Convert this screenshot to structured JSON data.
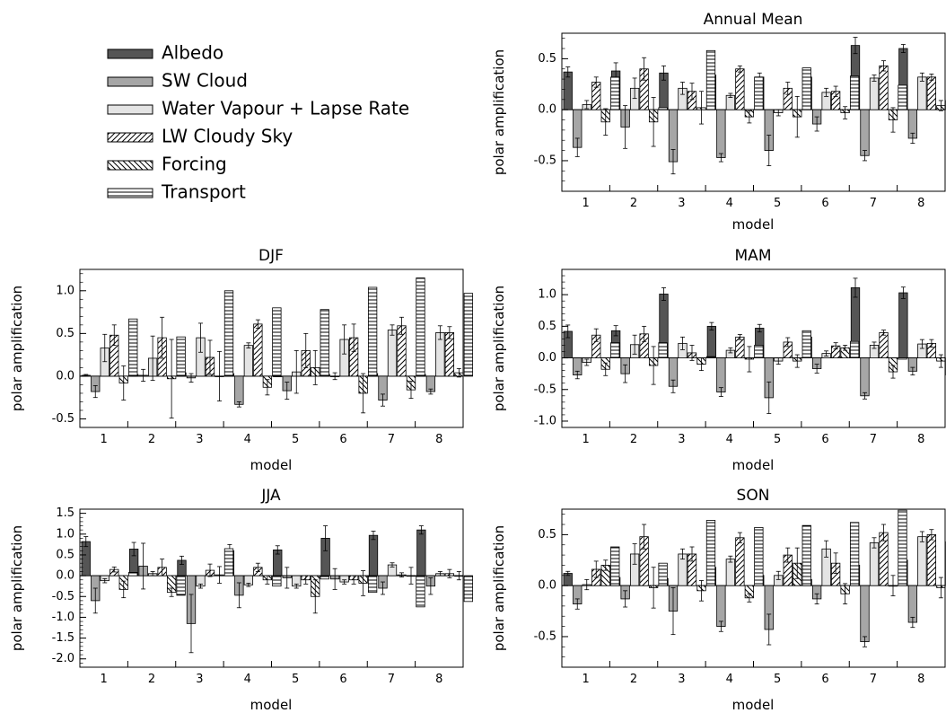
{
  "legend": {
    "items": [
      {
        "label": "Albedo",
        "pattern": "dark"
      },
      {
        "label": "SW Cloud",
        "pattern": "mid"
      },
      {
        "label": "Water Vapour + Lapse Rate",
        "pattern": "light"
      },
      {
        "label": "LW Cloudy Sky",
        "pattern": "fwd"
      },
      {
        "label": "Forcing",
        "pattern": "back"
      },
      {
        "label": "Transport",
        "pattern": "horiz"
      }
    ]
  },
  "colors": {
    "albedo": "#555555",
    "sw_cloud": "#a6a6a6",
    "water_vapour": "#e4e4e4"
  },
  "chart_data": [
    {
      "type": "bar",
      "title": "Annual Mean",
      "xlabel": "model",
      "ylabel": "polar amplification",
      "categories": [
        "1",
        "2",
        "3",
        "4",
        "5",
        "6",
        "7",
        "8"
      ],
      "ylim": [
        -0.8,
        0.75
      ],
      "yticks": [
        -0.5,
        0.0,
        0.5
      ],
      "ytick_labels": [
        "-0.5",
        "0.0",
        "0.5"
      ],
      "series": [
        {
          "name": "Albedo",
          "values": [
            0.37,
            0.38,
            0.36,
            0.34,
            0.32,
            0.32,
            0.63,
            0.6
          ],
          "err": [
            0.05,
            0.08,
            0.07,
            0.03,
            0.04,
            0.07,
            0.08,
            0.04
          ]
        },
        {
          "name": "SW Cloud",
          "values": [
            -0.37,
            -0.17,
            -0.51,
            -0.47,
            -0.4,
            -0.14,
            -0.45,
            -0.28
          ],
          "err": [
            0.09,
            0.21,
            0.12,
            0.04,
            0.15,
            0.07,
            0.05,
            0.05
          ]
        },
        {
          "name": "Water Vapour + Lapse Rate",
          "values": [
            0.05,
            0.21,
            0.21,
            0.14,
            -0.03,
            0.17,
            0.31,
            0.32
          ],
          "err": [
            0.04,
            0.1,
            0.06,
            0.02,
            0.03,
            0.04,
            0.03,
            0.04
          ]
        },
        {
          "name": "LW Cloudy Sky",
          "values": [
            0.27,
            0.4,
            0.18,
            0.4,
            0.21,
            0.18,
            0.43,
            0.32
          ],
          "err": [
            0.05,
            0.11,
            0.08,
            0.03,
            0.06,
            0.05,
            0.05,
            0.03
          ]
        },
        {
          "name": "Forcing",
          "values": [
            -0.12,
            -0.12,
            0.02,
            -0.07,
            -0.07,
            -0.03,
            -0.1,
            0.04
          ],
          "err": [
            0.13,
            0.24,
            0.16,
            0.06,
            0.2,
            0.06,
            0.12,
            0.05
          ]
        },
        {
          "name": "Transport",
          "values": [
            0.32,
            0.02,
            0.58,
            0.32,
            0.41,
            0.33,
            0.24,
            0.09
          ],
          "err": [
            0,
            0,
            0,
            0,
            0,
            0,
            0,
            0
          ]
        }
      ]
    },
    {
      "type": "bar",
      "title": "DJF",
      "xlabel": "model",
      "ylabel": "polar amplification",
      "categories": [
        "1",
        "2",
        "3",
        "4",
        "5",
        "6",
        "7",
        "8"
      ],
      "ylim": [
        -0.6,
        1.25
      ],
      "yticks": [
        -0.5,
        0.0,
        0.5,
        1.0
      ],
      "ytick_labels": [
        "-0.5",
        "0.0",
        "0.5",
        "1.0"
      ],
      "series": [
        {
          "name": "Albedo",
          "values": [
            0.01,
            0.02,
            0.04,
            0.03,
            0.0,
            0.02,
            0.03,
            0.02
          ],
          "err": [
            0.01,
            0.02,
            0.02,
            0.01,
            0.0,
            0.01,
            0.01,
            0.01
          ]
        },
        {
          "name": "SW Cloud",
          "values": [
            -0.18,
            0.01,
            -0.02,
            -0.33,
            -0.17,
            0.0,
            -0.28,
            -0.18
          ],
          "err": [
            0.07,
            0.07,
            0.05,
            0.03,
            0.1,
            0.04,
            0.07,
            0.03
          ]
        },
        {
          "name": "Water Vapour + Lapse Rate",
          "values": [
            0.33,
            0.21,
            0.45,
            0.36,
            0.05,
            0.43,
            0.54,
            0.51
          ],
          "err": [
            0.16,
            0.26,
            0.17,
            0.03,
            0.25,
            0.17,
            0.06,
            0.08
          ]
        },
        {
          "name": "LW Cloudy Sky",
          "values": [
            0.48,
            0.45,
            0.22,
            0.61,
            0.3,
            0.45,
            0.59,
            0.51
          ],
          "err": [
            0.12,
            0.24,
            0.2,
            0.05,
            0.2,
            0.16,
            0.1,
            0.07
          ]
        },
        {
          "name": "Forcing",
          "values": [
            -0.08,
            -0.03,
            0.0,
            -0.13,
            0.1,
            -0.2,
            -0.16,
            0.04
          ],
          "err": [
            0.2,
            0.46,
            0.29,
            0.09,
            0.2,
            0.23,
            0.1,
            0.05
          ]
        },
        {
          "name": "Transport",
          "values": [
            0.67,
            0.46,
            1.0,
            0.8,
            0.78,
            1.04,
            1.15,
            0.97
          ],
          "err": [
            0,
            0,
            0,
            0,
            0,
            0,
            0,
            0
          ]
        }
      ]
    },
    {
      "type": "bar",
      "title": "MAM",
      "xlabel": "model",
      "ylabel": "polar amplification",
      "categories": [
        "1",
        "2",
        "3",
        "4",
        "5",
        "6",
        "7",
        "8"
      ],
      "ylim": [
        -1.1,
        1.4
      ],
      "yticks": [
        -1.0,
        -0.5,
        0.0,
        0.5,
        1.0
      ],
      "ytick_labels": [
        "-1.0",
        "-0.5",
        "0.0",
        "0.5",
        "1.0"
      ],
      "series": [
        {
          "name": "Albedo",
          "values": [
            0.42,
            0.43,
            1.01,
            0.5,
            0.47,
            0.33,
            1.11,
            1.03
          ],
          "err": [
            0.1,
            0.08,
            0.1,
            0.06,
            0.06,
            0.08,
            0.15,
            0.09
          ]
        },
        {
          "name": "SW Cloud",
          "values": [
            -0.27,
            -0.25,
            -0.45,
            -0.54,
            -0.63,
            -0.17,
            -0.6,
            -0.21
          ],
          "err": [
            0.06,
            0.14,
            0.1,
            0.07,
            0.25,
            0.07,
            0.05,
            0.06
          ]
        },
        {
          "name": "Water Vapour + Lapse Rate",
          "values": [
            -0.07,
            0.21,
            0.23,
            0.12,
            -0.05,
            0.07,
            0.2,
            0.22
          ],
          "err": [
            0.05,
            0.15,
            0.1,
            0.04,
            0.05,
            0.04,
            0.05,
            0.07
          ]
        },
        {
          "name": "LW Cloudy Sky",
          "values": [
            0.36,
            0.38,
            0.08,
            0.33,
            0.25,
            0.19,
            0.4,
            0.23
          ],
          "err": [
            0.1,
            0.12,
            0.12,
            0.04,
            0.07,
            0.05,
            0.04,
            0.06
          ]
        },
        {
          "name": "Forcing",
          "values": [
            -0.18,
            -0.12,
            -0.1,
            -0.02,
            -0.05,
            0.16,
            -0.22,
            -0.05
          ],
          "err": [
            0.1,
            0.3,
            0.1,
            0.2,
            0.1,
            0.04,
            0.1,
            0.1
          ]
        },
        {
          "name": "Transport",
          "values": [
            0.24,
            0.24,
            0.02,
            0.2,
            0.43,
            0.26,
            -0.02,
            -0.27
          ],
          "err": [
            0,
            0,
            0,
            0,
            0,
            0,
            0,
            0
          ]
        }
      ]
    },
    {
      "type": "bar",
      "title": "JJA",
      "xlabel": "model",
      "ylabel": "polar amplification",
      "categories": [
        "1",
        "2",
        "3",
        "4",
        "5",
        "6",
        "7",
        "8"
      ],
      "ylim": [
        -2.2,
        1.6
      ],
      "yticks": [
        -2.0,
        -1.5,
        -1.0,
        -0.5,
        0.0,
        0.5,
        1.0,
        1.5
      ],
      "ytick_labels": [
        "-2.0",
        "-1.5",
        "-1.0",
        "-0.5",
        "0.0",
        "0.5",
        "1.0",
        "1.5"
      ],
      "series": [
        {
          "name": "Albedo",
          "values": [
            0.82,
            0.64,
            0.37,
            0.6,
            0.62,
            0.9,
            0.97,
            1.1
          ],
          "err": [
            0.12,
            0.16,
            0.1,
            0.15,
            0.1,
            0.3,
            0.1,
            0.1
          ]
        },
        {
          "name": "SW Cloud",
          "values": [
            -0.6,
            0.23,
            -1.15,
            -0.47,
            -0.05,
            -0.08,
            -0.3,
            -0.25
          ],
          "err": [
            0.3,
            0.55,
            0.7,
            0.3,
            0.25,
            0.25,
            0.15,
            0.2
          ]
        },
        {
          "name": "Water Vapour + Lapse Rate",
          "values": [
            -0.12,
            0.05,
            -0.25,
            -0.22,
            -0.25,
            -0.15,
            0.26,
            0.05
          ],
          "err": [
            0.05,
            0.05,
            0.05,
            0.04,
            0.05,
            0.05,
            0.05,
            0.05
          ]
        },
        {
          "name": "LW Cloudy Sky",
          "values": [
            0.15,
            0.2,
            0.13,
            0.2,
            -0.1,
            -0.1,
            0.02,
            0.05
          ],
          "err": [
            0.06,
            0.2,
            0.15,
            0.1,
            0.1,
            0.1,
            0.05,
            0.1
          ]
        },
        {
          "name": "Forcing",
          "values": [
            -0.33,
            -0.4,
            0.02,
            -0.1,
            -0.5,
            -0.18,
            0.0,
            0.0
          ],
          "err": [
            0.2,
            0.1,
            0.2,
            0.1,
            0.4,
            0.3,
            0.2,
            0.1
          ]
        },
        {
          "name": "Transport",
          "values": [
            0.08,
            -0.47,
            0.65,
            -0.25,
            -0.08,
            -0.4,
            -0.75,
            -0.62
          ],
          "err": [
            0,
            0,
            0,
            0,
            0,
            0,
            0,
            0
          ]
        }
      ]
    },
    {
      "type": "bar",
      "title": "SON",
      "xlabel": "model",
      "ylabel": "polar amplification",
      "categories": [
        "1",
        "2",
        "3",
        "4",
        "5",
        "6",
        "7",
        "8"
      ],
      "ylim": [
        -0.8,
        0.75
      ],
      "yticks": [
        -0.5,
        0.0,
        0.5
      ],
      "ytick_labels": [
        "-0.5",
        "0.0",
        "0.5"
      ],
      "series": [
        {
          "name": "Albedo",
          "values": [
            0.12,
            0.08,
            0.07,
            0.18,
            0.1,
            0.06,
            0.2,
            0.25
          ],
          "err": [
            0.02,
            0.02,
            0.02,
            0.02,
            0.03,
            0.02,
            0.02,
            0.01
          ]
        },
        {
          "name": "SW Cloud",
          "values": [
            -0.18,
            -0.13,
            -0.25,
            -0.4,
            -0.43,
            -0.13,
            -0.55,
            -0.36
          ],
          "err": [
            0.05,
            0.08,
            0.23,
            0.05,
            0.15,
            0.05,
            0.05,
            0.05
          ]
        },
        {
          "name": "Water Vapour + Lapse Rate",
          "values": [
            0.01,
            0.31,
            0.31,
            0.26,
            0.1,
            0.36,
            0.42,
            0.48
          ],
          "err": [
            0.05,
            0.1,
            0.05,
            0.03,
            0.04,
            0.08,
            0.05,
            0.05
          ]
        },
        {
          "name": "LW Cloudy Sky",
          "values": [
            0.16,
            0.48,
            0.31,
            0.47,
            0.3,
            0.22,
            0.52,
            0.5
          ],
          "err": [
            0.08,
            0.12,
            0.07,
            0.05,
            0.07,
            0.1,
            0.08,
            0.05
          ]
        },
        {
          "name": "Forcing",
          "values": [
            0.2,
            -0.02,
            -0.05,
            -0.12,
            0.22,
            -0.08,
            0.0,
            -0.02
          ],
          "err": [
            0.05,
            0.2,
            0.1,
            0.04,
            0.15,
            0.1,
            0.1,
            0.1
          ]
        },
        {
          "name": "Transport",
          "values": [
            0.38,
            0.22,
            0.64,
            0.57,
            0.59,
            0.62,
            0.74,
            0.43
          ],
          "err": [
            0,
            0,
            0,
            0,
            0,
            0,
            0,
            0
          ]
        }
      ]
    }
  ]
}
